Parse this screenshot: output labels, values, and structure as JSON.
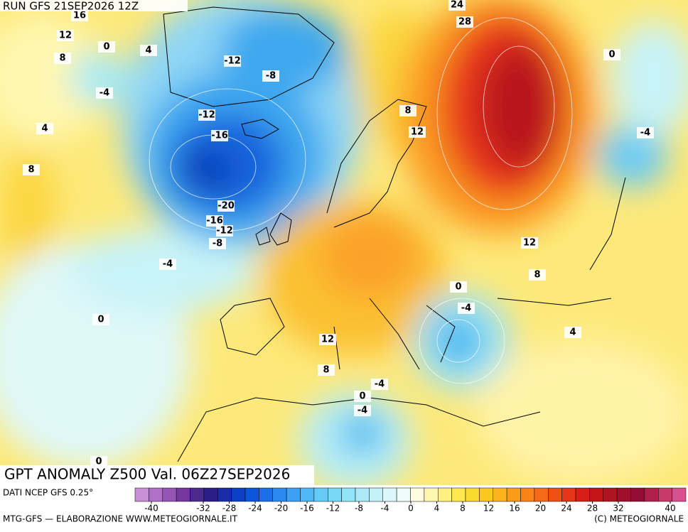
{
  "header": "RUN GFS 21SEP2026 12Z",
  "title": "GPT ANOMALY Z500 Val. 06Z27SEP2026",
  "source": "DATI NCEP GFS 0.25°",
  "colorbar": {
    "ticks": [
      -40,
      -32,
      -28,
      -24,
      -20,
      -16,
      -12,
      -8,
      -4,
      0,
      4,
      8,
      12,
      16,
      20,
      24,
      28,
      32,
      40
    ]
  },
  "contour_labels": [
    16,
    12,
    8,
    0,
    4,
    -4,
    4,
    8,
    -12,
    -8,
    -12,
    -16,
    -20,
    -16,
    -12,
    -8,
    -4,
    0,
    24,
    28,
    0,
    8,
    12,
    -4,
    12,
    8,
    0,
    -4,
    4,
    12,
    8,
    -4,
    0,
    -4,
    0
  ],
  "footer": {
    "left": "MTG-GFS — ELABORAZIONE WWW.METEOGIORNALE.IT",
    "right": "(C) METEOGIORNALE"
  }
}
